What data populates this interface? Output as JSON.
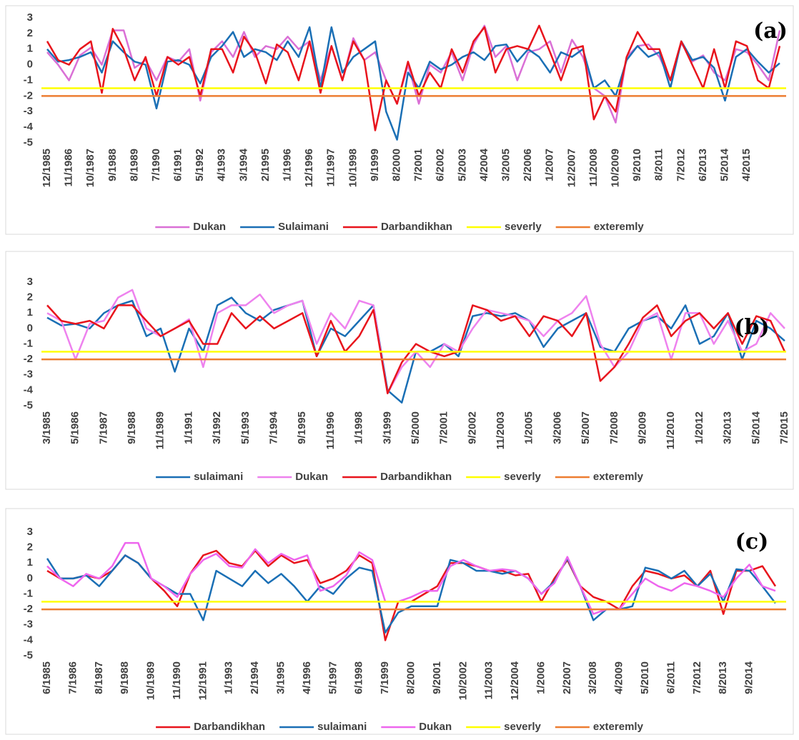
{
  "chart_data": [
    {
      "type": "line",
      "annotation": "(a)",
      "categories": [
        "12/1985",
        null,
        "11/1986",
        null,
        "10/1987",
        null,
        "9/1988",
        null,
        "8/1989",
        null,
        "7/1990",
        null,
        "6/1991",
        null,
        "5/1992",
        null,
        "4/1993",
        null,
        "3/1994",
        null,
        "2/1995",
        null,
        "1/1996",
        null,
        "12/1996",
        null,
        "11/1997",
        null,
        "10/1998",
        null,
        "9/1999",
        null,
        "8/2000",
        null,
        "7/2001",
        null,
        "6/2002",
        null,
        "5/2003",
        null,
        "4/2004",
        null,
        "3/2005",
        null,
        "2/2006",
        null,
        "1/2007",
        null,
        "12/2007",
        null,
        "11/2008",
        null,
        "10/2009",
        null,
        "9/2010",
        null,
        "8/2011",
        null,
        "7/2012",
        null,
        "6/2013",
        null,
        "5/2014",
        null,
        "4/2015",
        null,
        null,
        null
      ],
      "series": [
        {
          "name": "Dukan",
          "color": "#da70d6",
          "values": [
            0.8,
            0.0,
            -1.0,
            0.6,
            1.1,
            0.0,
            2.2,
            2.2,
            -0.2,
            0.3,
            -1.0,
            0.5,
            0.2,
            1.0,
            -2.3,
            0.8,
            1.5,
            0.5,
            2.1,
            0.5,
            1.2,
            1.0,
            1.8,
            1.0,
            1.5,
            -1.0,
            1.2,
            -1.0,
            1.7,
            0.3,
            0.8,
            -1.0,
            -2.5,
            0.0,
            -2.5,
            0.0,
            -0.5,
            0.8,
            -1.0,
            1.3,
            2.5,
            0.5,
            1.2,
            -1.0,
            0.8,
            1.0,
            1.5,
            -0.5,
            1.6,
            0.5,
            -1.5,
            -2.0,
            -3.7,
            0.5,
            1.2,
            1.3,
            0.5,
            -1.0,
            1.4,
            0.2,
            0.6,
            -0.5,
            -1.0,
            1.0,
            0.8,
            0.0,
            -1.0,
            2.2
          ]
        },
        {
          "name": "Sulaimani",
          "color": "#1a6fb5",
          "values": [
            1.0,
            0.2,
            0.3,
            0.5,
            0.8,
            -0.5,
            1.5,
            0.8,
            0.2,
            0.0,
            -2.8,
            0.2,
            0.3,
            0.0,
            -1.2,
            0.5,
            1.2,
            2.1,
            0.5,
            1.0,
            0.8,
            0.3,
            1.5,
            0.5,
            2.4,
            -1.5,
            2.4,
            -0.5,
            0.5,
            1.0,
            1.5,
            -3.0,
            -4.8,
            -0.5,
            -1.5,
            0.2,
            -0.3,
            0.0,
            0.5,
            0.8,
            0.3,
            1.2,
            1.3,
            0.2,
            1.0,
            0.5,
            -0.5,
            0.8,
            0.5,
            1.0,
            -1.5,
            -1.0,
            -2.0,
            0.3,
            1.2,
            0.5,
            0.8,
            -1.5,
            1.5,
            0.3,
            0.5,
            -0.2,
            -2.3,
            0.5,
            1.0,
            0.2,
            -0.5,
            0.1
          ]
        },
        {
          "name": "Darbandikhan",
          "color": "#e8141c",
          "values": [
            1.5,
            0.3,
            0.0,
            1.0,
            1.5,
            -1.8,
            2.3,
            1.0,
            -1.0,
            0.5,
            -2.0,
            0.5,
            0.0,
            0.5,
            -2.0,
            1.0,
            1.0,
            -0.5,
            1.8,
            0.8,
            -1.2,
            1.3,
            0.8,
            -1.0,
            1.5,
            -1.8,
            1.2,
            -1.0,
            1.5,
            0.3,
            -4.2,
            -1.0,
            -2.5,
            0.2,
            -2.0,
            -0.5,
            -1.5,
            1.0,
            -0.5,
            1.5,
            2.4,
            -0.5,
            1.0,
            1.2,
            1.0,
            2.5,
            0.8,
            -1.0,
            1.0,
            1.2,
            -3.5,
            -2.0,
            -3.0,
            0.5,
            2.1,
            1.0,
            1.0,
            -1.0,
            1.5,
            0.0,
            -1.5,
            1.0,
            -1.5,
            1.5,
            1.2,
            -1.0,
            -1.5,
            1.2
          ]
        }
      ],
      "reference_lines": [
        {
          "name": "severly",
          "color": "#ffff00",
          "value": -1.5
        },
        {
          "name": "exteremly",
          "color": "#ed7d31",
          "value": -2
        }
      ],
      "ylim": [
        -5,
        3
      ],
      "yticks": [
        3,
        2,
        1,
        0,
        -1,
        -2,
        -3,
        -4,
        -5
      ]
    },
    {
      "type": "line",
      "annotation": "(b)",
      "categories": [
        "3/1985",
        null,
        "5/1986",
        null,
        "7/1987",
        null,
        "9/1988",
        null,
        "11/1989",
        null,
        "1/1991",
        null,
        "3/1992",
        null,
        "5/1993",
        null,
        "7/1994",
        null,
        "9/1995",
        null,
        "11/1996",
        null,
        "1/1998",
        null,
        "3/1999",
        null,
        "5/2000",
        null,
        "7/2001",
        null,
        "9/2002",
        null,
        "11/2003",
        null,
        "1/2005",
        null,
        "3/2006",
        null,
        "5/2007",
        null,
        "7/2008",
        null,
        "9/2009",
        null,
        "11/2010",
        null,
        "1/2012",
        null,
        "3/2013",
        null,
        "5/2014",
        null,
        "7/2015"
      ],
      "series": [
        {
          "name": "sulaimani",
          "color": "#1a6fb5",
          "values": [
            0.7,
            0.2,
            0.3,
            0.0,
            1.0,
            1.5,
            1.8,
            -0.5,
            0.0,
            -2.8,
            0.0,
            -1.5,
            1.5,
            2.0,
            1.0,
            0.5,
            1.2,
            1.5,
            1.8,
            -1.8,
            0.0,
            -0.5,
            0.5,
            1.5,
            -4.0,
            -4.8,
            -1.5,
            -1.5,
            -1.0,
            -1.8,
            0.8,
            1.0,
            0.8,
            1.0,
            0.5,
            -1.2,
            0.0,
            0.5,
            1.0,
            -1.2,
            -1.5,
            0.0,
            0.5,
            0.8,
            0.0,
            1.5,
            -1.0,
            -0.5,
            1.0,
            -2.0,
            0.5,
            0.0,
            -0.8
          ]
        },
        {
          "name": "Dukan",
          "color": "#ee82ee",
          "values": [
            1.0,
            0.5,
            -2.0,
            0.3,
            0.5,
            2.0,
            2.5,
            0.0,
            -0.5,
            0.0,
            0.6,
            -2.5,
            1.0,
            1.5,
            1.5,
            2.2,
            1.0,
            1.5,
            1.8,
            -1.0,
            1.0,
            0.0,
            1.8,
            1.5,
            -4.2,
            -2.5,
            -1.5,
            -2.5,
            -1.0,
            -1.5,
            0.0,
            1.2,
            1.0,
            0.8,
            0.5,
            -0.5,
            0.5,
            1.0,
            2.1,
            -1.0,
            -2.5,
            -1.5,
            0.5,
            1.0,
            -2.0,
            1.0,
            1.0,
            -1.0,
            0.5,
            -1.5,
            -1.0,
            1.0,
            0.0
          ]
        },
        {
          "name": "Darbandikhan",
          "color": "#e8141c",
          "values": [
            1.5,
            0.5,
            0.3,
            0.5,
            0.0,
            1.5,
            1.5,
            0.5,
            -0.5,
            0.0,
            0.5,
            -1.0,
            -1.0,
            1.0,
            0.0,
            0.8,
            0.0,
            0.5,
            1.0,
            -1.8,
            0.5,
            -1.5,
            -0.5,
            1.2,
            -4.2,
            -2.2,
            -1.0,
            -1.5,
            -1.8,
            -1.5,
            1.5,
            1.2,
            0.5,
            0.8,
            -0.5,
            0.8,
            0.5,
            -0.5,
            1.0,
            -3.4,
            -2.5,
            -1.0,
            0.7,
            1.5,
            -0.5,
            0.5,
            1.0,
            0.0,
            1.0,
            -1.0,
            0.8,
            0.5,
            -1.5
          ]
        }
      ],
      "reference_lines": [
        {
          "name": "severly",
          "color": "#ffff00",
          "value": -1.5
        },
        {
          "name": "exteremly",
          "color": "#ed7d31",
          "value": -2
        }
      ],
      "ylim": [
        -5,
        3
      ],
      "yticks": [
        3,
        2,
        1,
        0,
        -1,
        -2,
        -3,
        -4,
        -5
      ]
    },
    {
      "type": "line",
      "annotation": "(c)",
      "categories": [
        "6/1985",
        null,
        "7/1986",
        null,
        "8/1987",
        null,
        "9/1988",
        null,
        "10/1989",
        null,
        "11/1990",
        null,
        "12/1991",
        null,
        "1/1993",
        null,
        "2/1994",
        null,
        "3/1995",
        null,
        "4/1996",
        null,
        "5/1997",
        null,
        "6/1998",
        null,
        "7/1999",
        null,
        "8/2000",
        null,
        "9/2001",
        null,
        "10/2002",
        null,
        "11/2003",
        null,
        "12/2004",
        null,
        "1/2006",
        null,
        "2/2007",
        null,
        "3/2008",
        null,
        "4/2009",
        null,
        "5/2010",
        null,
        "6/2011",
        null,
        "7/2012",
        null,
        "8/2013",
        null,
        "9/2014",
        null,
        null
      ],
      "series": [
        {
          "name": "Darbandikhan",
          "color": "#e8141c",
          "values": [
            0.5,
            0.0,
            0.0,
            0.2,
            0.0,
            0.5,
            1.5,
            1.0,
            0.0,
            -0.8,
            -1.8,
            0.3,
            1.5,
            1.8,
            1.0,
            0.8,
            1.8,
            0.8,
            1.5,
            1.0,
            1.2,
            -0.3,
            0.0,
            0.5,
            1.5,
            1.0,
            -4.0,
            -1.5,
            -1.5,
            -1.0,
            -0.5,
            1.0,
            1.0,
            0.8,
            0.5,
            0.5,
            0.2,
            0.3,
            -1.5,
            0.0,
            1.2,
            -0.5,
            -1.2,
            -1.5,
            -2.0,
            -0.5,
            0.5,
            0.3,
            0.0,
            0.2,
            -0.5,
            0.5,
            -2.3,
            0.5,
            0.5,
            0.8,
            -0.5
          ]
        },
        {
          "name": "sulaimani",
          "color": "#1a6fb5",
          "values": [
            1.3,
            0.0,
            0.0,
            0.2,
            -0.5,
            0.5,
            1.5,
            1.0,
            0.0,
            -0.5,
            -1.0,
            -1.0,
            -2.7,
            0.5,
            0.0,
            -0.5,
            0.5,
            -0.3,
            0.3,
            -0.5,
            -1.5,
            -0.5,
            -1.0,
            0.0,
            0.7,
            0.5,
            -3.5,
            -2.2,
            -1.8,
            -1.8,
            -1.8,
            1.2,
            1.0,
            0.5,
            0.5,
            0.3,
            0.5,
            0.0,
            -1.0,
            -0.2,
            1.3,
            -0.5,
            -2.7,
            -2.0,
            -2.0,
            -1.8,
            0.7,
            0.5,
            0.0,
            0.5,
            -0.5,
            0.3,
            -1.5,
            0.6,
            0.5,
            -0.5,
            -1.6
          ]
        },
        {
          "name": "Dukan",
          "color": "#ee66ee",
          "values": [
            0.8,
            0.0,
            -0.5,
            0.3,
            0.0,
            0.8,
            2.3,
            2.3,
            0.0,
            -0.5,
            -1.2,
            0.3,
            1.2,
            1.6,
            0.8,
            0.7,
            1.9,
            1.0,
            1.6,
            1.2,
            1.5,
            -0.8,
            -0.5,
            0.2,
            1.7,
            1.2,
            -1.5,
            -1.5,
            -1.2,
            -0.8,
            -0.8,
            0.8,
            1.2,
            0.8,
            0.5,
            0.6,
            0.5,
            0.0,
            -1.0,
            -0.3,
            1.4,
            -0.5,
            -2.3,
            -2.0,
            -2.0,
            -1.0,
            0.0,
            -0.5,
            -0.8,
            -0.3,
            -0.5,
            -0.8,
            -1.2,
            0.0,
            0.9,
            -0.5,
            -0.8
          ]
        }
      ],
      "reference_lines": [
        {
          "name": "severly",
          "color": "#ffff00",
          "value": -1.5
        },
        {
          "name": "exteremly",
          "color": "#ed7d31",
          "value": -2
        }
      ],
      "ylim": [
        -5,
        3
      ],
      "yticks": [
        3,
        2,
        1,
        0,
        -1,
        -2,
        -3,
        -4,
        -5
      ]
    }
  ]
}
